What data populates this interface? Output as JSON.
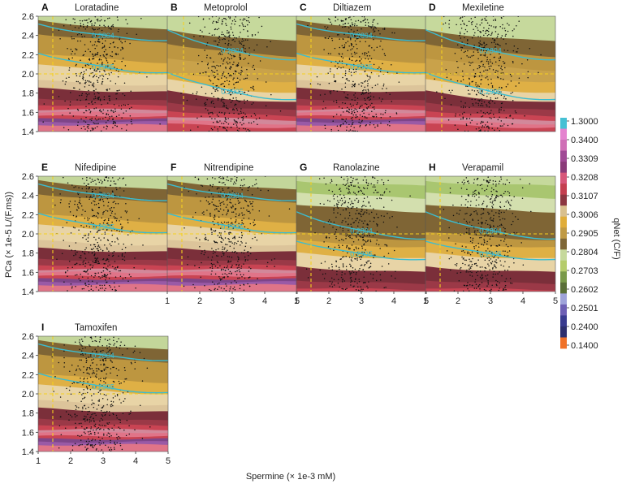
{
  "chart_data": {
    "type": "contour",
    "xlabel": "Spermine (× 1e-3 mM)",
    "ylabel": "PCa (× 1e-5 L/(F.ms))",
    "colorbar_label": "qNet (C/F)",
    "x_ticks": [
      "1",
      "2",
      "3",
      "4",
      "5"
    ],
    "y_ticks": [
      "1.4",
      "1.6",
      "1.8",
      "2.0",
      "2.2",
      "2.4",
      "2.6"
    ],
    "xlim": [
      1,
      5
    ],
    "ylim": [
      1.4,
      2.6
    ],
    "colorbar_ticks": [
      "1.3000",
      "0.3400",
      "0.3309",
      "0.3208",
      "0.3107",
      "0.3006",
      "0.2905",
      "0.2804",
      "0.2703",
      "0.2602",
      "0.2501",
      "0.2400",
      "0.1400"
    ],
    "colorbar_colors": [
      "#46c0d4",
      "#e483cf",
      "#cf6fb6",
      "#a04a95",
      "#8a3b79",
      "#d7577a",
      "#c43f50",
      "#8c3640",
      "#d9c08e",
      "#e0ad3a",
      "#c09a44",
      "#7f6737",
      "#c6d99c",
      "#b5cc6c",
      "#7a9a4a",
      "#5a6f38",
      "#9fa3da",
      "#6d5fb4",
      "#393b8f",
      "#2d2f6e",
      "#f07128"
    ],
    "panels": [
      {
        "letter": "A",
        "title": "Loratadine",
        "profile": "standard",
        "threshold_x": 1.45,
        "isolines": [
          "0.2804",
          "0.2905"
        ]
      },
      {
        "letter": "B",
        "title": "Metoprolol",
        "profile": "high",
        "threshold_x": 1.5,
        "isolines": [
          "0.2804",
          "0.2905"
        ]
      },
      {
        "letter": "C",
        "title": "Diltiazem",
        "profile": "standard",
        "threshold_x": 1.45,
        "isolines": [
          "0.2804",
          "0.2905"
        ]
      },
      {
        "letter": "D",
        "title": "Mexiletine",
        "profile": "high",
        "threshold_x": 1.5,
        "isolines": [
          "0.2804",
          "0.2905"
        ]
      },
      {
        "letter": "E",
        "title": "Nifedipine",
        "profile": "standard",
        "threshold_x": 1.45,
        "isolines": [
          "0.2804",
          "0.2905"
        ]
      },
      {
        "letter": "F",
        "title": "Nitrendipine",
        "profile": "standard",
        "threshold_x": 1.45,
        "isolines": [
          "0.2804",
          "0.2905"
        ]
      },
      {
        "letter": "G",
        "title": "Ranolazine",
        "profile": "low",
        "threshold_x": 1.45,
        "isolines": [
          "0.2804",
          "0.2905"
        ]
      },
      {
        "letter": "H",
        "title": "Verapamil",
        "profile": "low",
        "threshold_x": 1.45,
        "isolines": [
          "0.2804",
          "0.2905"
        ]
      },
      {
        "letter": "I",
        "title": "Tamoxifen",
        "profile": "standard",
        "threshold_x": 1.45,
        "isolines": [
          "0.2804",
          "0.2905"
        ]
      }
    ]
  }
}
